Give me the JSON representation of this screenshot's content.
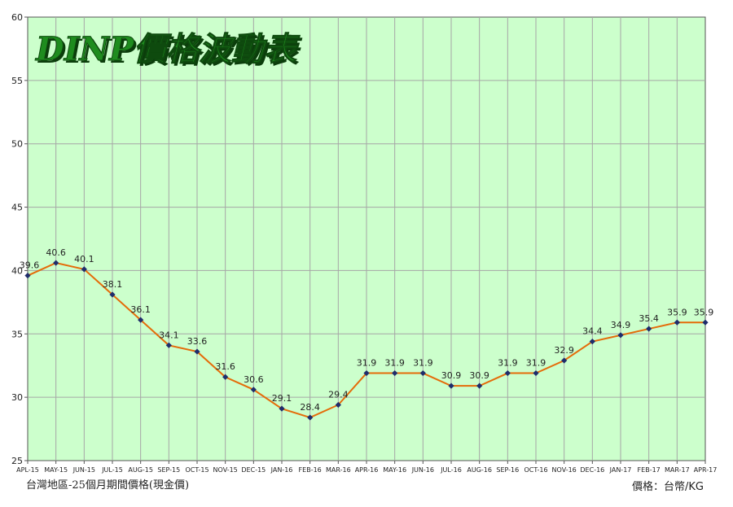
{
  "chart_data": {
    "type": "line",
    "title": "DINP價格波動表",
    "categories": [
      "APL-15",
      "MAY-15",
      "JUN-15",
      "JUL-15",
      "AUG-15",
      "SEP-15",
      "OCT-15",
      "NOV-15",
      "DEC-15",
      "JAN-16",
      "FEB-16",
      "MAR-16",
      "APR-16",
      "MAY-16",
      "JUN-16",
      "JUL-16",
      "AUG-16",
      "SEP-16",
      "OCT-16",
      "NOV-16",
      "DEC-16",
      "JAN-17",
      "FEB-17",
      "MAR-17",
      "APR-17"
    ],
    "series": [
      {
        "values": [
          39.6,
          40.6,
          40.1,
          38.1,
          36.1,
          34.1,
          33.6,
          31.6,
          30.6,
          29.1,
          28.4,
          29.4,
          31.9,
          31.9,
          31.9,
          30.9,
          30.9,
          31.9,
          31.9,
          32.9,
          34.4,
          34.9,
          35.4,
          35.9,
          35.9
        ]
      }
    ],
    "ylim": [
      25,
      60
    ],
    "yticks": [
      25,
      30,
      35,
      40,
      45,
      50,
      55,
      60
    ],
    "grid": true,
    "data_labels": true,
    "colors": {
      "line": "#E46C0A",
      "marker": "#1F2D6B",
      "plot_bg": "#CCFFCC",
      "grid": "#A6A6A6",
      "title_fill": "#1E8C1E",
      "title_shadow": "#0B3D0B"
    }
  },
  "footer": {
    "left_note": "台灣地區-25個月期間價格(現金價)",
    "right_note": "價格：台幣/KG"
  }
}
